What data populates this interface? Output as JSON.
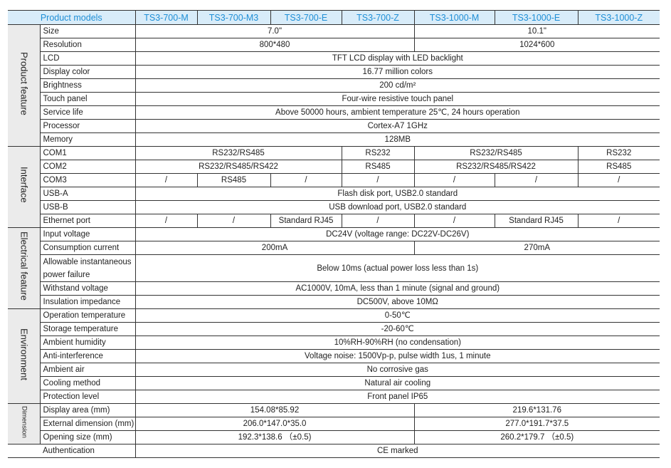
{
  "header": {
    "title": "Product models",
    "models": [
      "TS3-700-M",
      "TS3-700-M3",
      "TS3-700-E",
      "TS3-700-Z",
      "TS3-1000-M",
      "TS3-1000-E",
      "TS3-1000-Z"
    ]
  },
  "colors": {
    "header_bg": "#d8ecf9",
    "header_text": "#1f8fd6",
    "group_bg": "#ebebeb"
  },
  "groups": [
    {
      "label": "Product feature",
      "rows": [
        {
          "label": "Size",
          "cells": [
            {
              "text": "7.0\"",
              "span": 4
            },
            {
              "text": "10.1\"",
              "span": 3
            }
          ]
        },
        {
          "label": "Resolution",
          "cells": [
            {
              "text": "800*480",
              "span": 4
            },
            {
              "text": "1024*600",
              "span": 3
            }
          ]
        },
        {
          "label": "LCD",
          "cells": [
            {
              "text": "TFT LCD display with LED backlight",
              "span": 7
            }
          ]
        },
        {
          "label": "Display color",
          "cells": [
            {
              "text": "16.77 million colors",
              "span": 7
            }
          ]
        },
        {
          "label": "Brightness",
          "cells": [
            {
              "text": "200 cd/m²",
              "span": 7
            }
          ]
        },
        {
          "label": "Touch panel",
          "cells": [
            {
              "text": "Four-wire resistive touch panel",
              "span": 7
            }
          ]
        },
        {
          "label": "Service life",
          "cells": [
            {
              "text": "Above 50000 hours, ambient temperature 25℃, 24 hours operation",
              "span": 7
            }
          ]
        },
        {
          "label": "Processor",
          "cells": [
            {
              "text": "Cortex-A7 1GHz",
              "span": 7
            }
          ]
        },
        {
          "label": "Memory",
          "cells": [
            {
              "text": "128MB",
              "span": 7
            }
          ]
        }
      ]
    },
    {
      "label": "Interface",
      "rows": [
        {
          "label": "COM1",
          "cells": [
            {
              "text": "RS232/RS485",
              "span": 3
            },
            {
              "text": "RS232",
              "span": 1
            },
            {
              "text": "RS232/RS485",
              "span": 2
            },
            {
              "text": "RS232",
              "span": 1
            }
          ]
        },
        {
          "label": "COM2",
          "cells": [
            {
              "text": "RS232/RS485/RS422",
              "span": 3
            },
            {
              "text": "RS485",
              "span": 1
            },
            {
              "text": "RS232/RS485/RS422",
              "span": 2
            },
            {
              "text": "RS485",
              "span": 1
            }
          ]
        },
        {
          "label": "COM3",
          "cells": [
            {
              "text": "/",
              "span": 1
            },
            {
              "text": "RS485",
              "span": 1
            },
            {
              "text": "/",
              "span": 1
            },
            {
              "text": "/",
              "span": 1
            },
            {
              "text": "/",
              "span": 1
            },
            {
              "text": "/",
              "span": 1
            },
            {
              "text": "/",
              "span": 1
            }
          ]
        },
        {
          "label": "USB-A",
          "cells": [
            {
              "text": "Flash disk port, USB2.0 standard",
              "span": 7
            }
          ]
        },
        {
          "label": "USB-B",
          "cells": [
            {
              "text": "USB download port, USB2.0 standard",
              "span": 7
            }
          ]
        },
        {
          "label": "Ethernet port",
          "cells": [
            {
              "text": "/",
              "span": 1
            },
            {
              "text": "/",
              "span": 1
            },
            {
              "text": "Standard RJ45",
              "span": 1
            },
            {
              "text": "/",
              "span": 1
            },
            {
              "text": "/",
              "span": 1
            },
            {
              "text": "Standard RJ45",
              "span": 1
            },
            {
              "text": "/",
              "span": 1
            }
          ]
        }
      ]
    },
    {
      "label": "Electrical feature",
      "rows": [
        {
          "label": "Input voltage",
          "cells": [
            {
              "text": "DC24V (voltage range: DC22V-DC26V)",
              "span": 7
            }
          ]
        },
        {
          "label": "Consumption current",
          "cells": [
            {
              "text": "200mA",
              "span": 4
            },
            {
              "text": "270mA",
              "span": 3
            }
          ]
        },
        {
          "label": "Allowable instantaneous power failure",
          "double": true,
          "cells": [
            {
              "text": "Below 10ms (actual power loss less than 1s)",
              "span": 7
            }
          ]
        },
        {
          "label": "Withstand voltage",
          "cells": [
            {
              "text": "AC1000V, 10mA, less than 1 minute (signal and ground)",
              "span": 7
            }
          ]
        },
        {
          "label": "Insulation impedance",
          "cells": [
            {
              "text": "DC500V, above 10MΩ",
              "span": 7
            }
          ]
        }
      ]
    },
    {
      "label": "Environment",
      "rows": [
        {
          "label": "Operation temperature",
          "cells": [
            {
              "text": "0-50℃",
              "span": 7
            }
          ]
        },
        {
          "label": "Storage temperature",
          "cells": [
            {
              "text": "-20-60℃",
              "span": 7
            }
          ]
        },
        {
          "label": "Ambient humidity",
          "cells": [
            {
              "text": "10%RH-90%RH (no condensation)",
              "span": 7
            }
          ]
        },
        {
          "label": "Anti-interference",
          "cells": [
            {
              "text": "Voltage noise: 1500Vp-p, pulse width 1us, 1 minute",
              "span": 7
            }
          ]
        },
        {
          "label": "Ambient air",
          "cells": [
            {
              "text": "No corrosive gas",
              "span": 7
            }
          ]
        },
        {
          "label": "Cooling method",
          "cells": [
            {
              "text": "Natural air cooling",
              "span": 7
            }
          ]
        },
        {
          "label": "Protection level",
          "cells": [
            {
              "text": "Front panel IP65",
              "span": 7
            }
          ]
        }
      ]
    },
    {
      "label": "Dimension",
      "small": true,
      "rows": [
        {
          "label": "Display area (mm)",
          "cells": [
            {
              "text": "154.08*85.92",
              "span": 4
            },
            {
              "text": "219.6*131.76",
              "span": 3
            }
          ]
        },
        {
          "label": "External dimension (mm)",
          "cells": [
            {
              "text": "206.0*147.0*35.0",
              "span": 4
            },
            {
              "text": "277.0*191.7*37.5",
              "span": 3
            }
          ]
        },
        {
          "label": "Opening size (mm)",
          "cells": [
            {
              "text": "192.3*138.6 （±0.5)",
              "span": 4
            },
            {
              "text": "260.2*179.7 （±0.5)",
              "span": 3
            }
          ]
        }
      ]
    }
  ],
  "authentication": {
    "label": "Authentication",
    "value": "CE marked"
  }
}
